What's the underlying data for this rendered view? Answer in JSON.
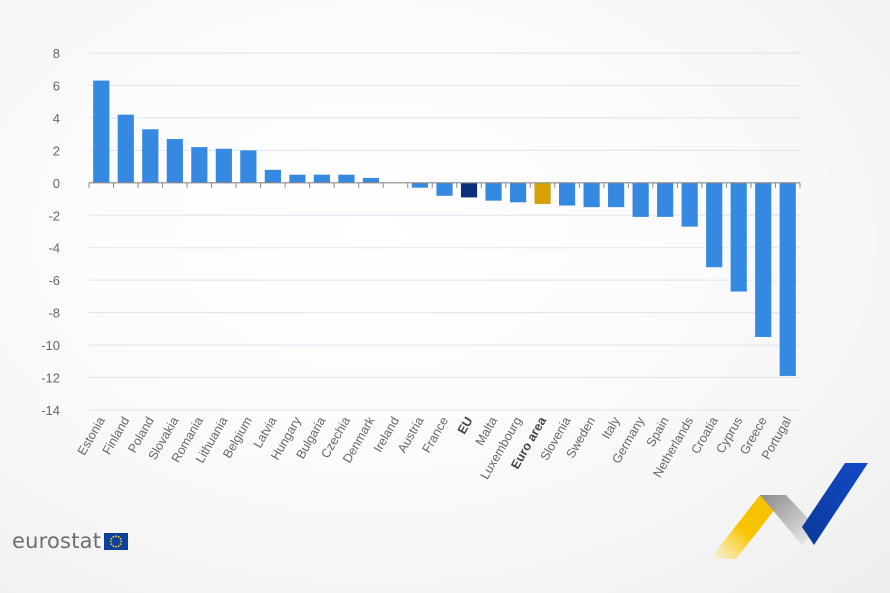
{
  "chart_data": {
    "type": "bar",
    "title": "",
    "xlabel": "",
    "ylabel": "",
    "ylim": [
      -14,
      8
    ],
    "yticks": [
      8,
      6,
      4,
      2,
      0,
      -2,
      -4,
      -6,
      -8,
      -10,
      -12,
      -14
    ],
    "grid": true,
    "legend": null,
    "categories": [
      "Estonia",
      "Finland",
      "Poland",
      "Slovakia",
      "Romania",
      "Lithuania",
      "Belgium",
      "Latvia",
      "Hungary",
      "Bulgaria",
      "Czechia",
      "Denmark",
      "Ireland",
      "Austria",
      "France",
      "EU",
      "Malta",
      "Luxembourg",
      "Euro area",
      "Slovenia",
      "Sweden",
      "Italy",
      "Germany",
      "Spain",
      "Netherlands",
      "Croatia",
      "Cyprus",
      "Greece",
      "Portugal"
    ],
    "values": [
      6.3,
      4.2,
      3.3,
      2.7,
      2.2,
      2.1,
      2.0,
      0.8,
      0.5,
      0.5,
      0.5,
      0.3,
      0.0,
      -0.3,
      -0.8,
      -0.9,
      -1.1,
      -1.2,
      -1.3,
      -1.4,
      -1.5,
      -1.5,
      -2.1,
      -2.1,
      -2.7,
      -5.2,
      -6.7,
      -9.5,
      -11.9
    ],
    "highlight": {
      "EU": "#0b2f7a",
      "Euro area": "#d4a106"
    },
    "bold_labels": [
      "EU",
      "Euro area"
    ],
    "colors": {
      "default": "#3589e0",
      "eu": "#0b2f7a",
      "euro_area": "#d4a106"
    }
  },
  "branding": {
    "logo_text": "eurostat"
  }
}
